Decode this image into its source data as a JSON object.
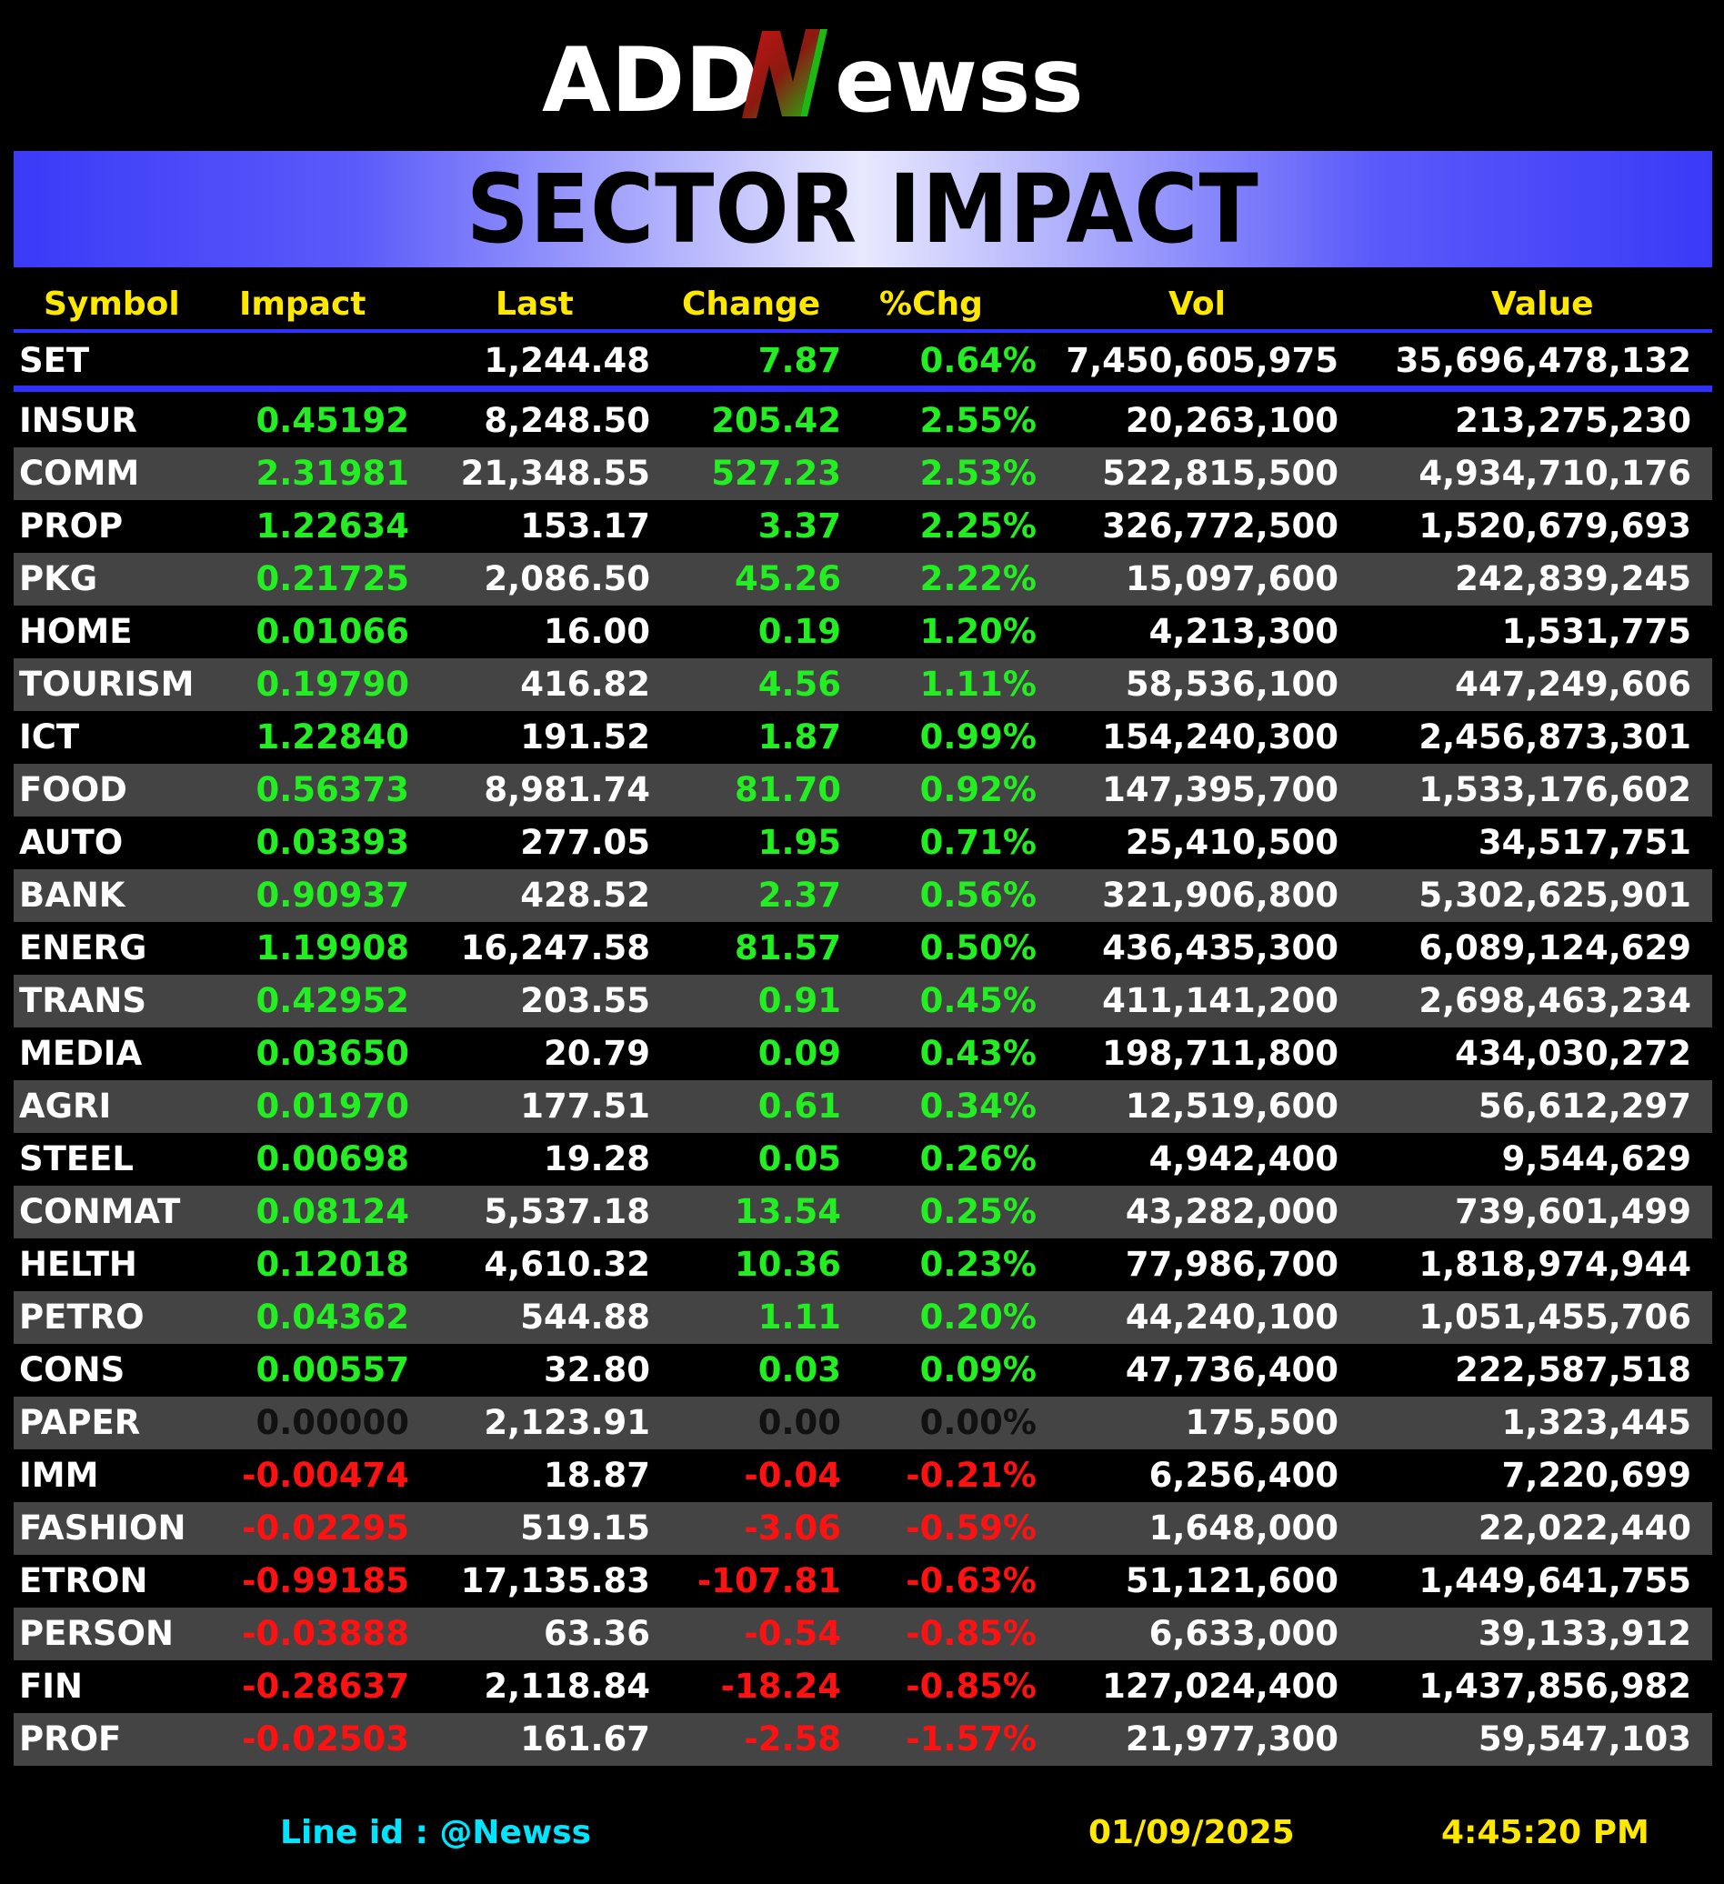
{
  "brand": {
    "name": "ADDNewss",
    "part1": "ADD",
    "accent": "N",
    "part2": "ewss",
    "accent_colors": [
      "#1db814",
      "#c81414"
    ]
  },
  "title": "SECTOR IMPACT",
  "headers": {
    "symbol": "Symbol",
    "impact": "Impact",
    "last": "Last",
    "change": "Change",
    "pct": "%Chg",
    "vol": "Vol",
    "value": "Value"
  },
  "index": {
    "symbol": "SET",
    "impact": "",
    "last": "1,244.48",
    "change": "7.87",
    "pct": "0.64%",
    "vol": "7,450,605,975",
    "value": "35,696,478,132",
    "dir": "up"
  },
  "rows": [
    {
      "symbol": "INSUR",
      "impact": "0.45192",
      "last": "8,248.50",
      "change": "205.42",
      "pct": "2.55%",
      "vol": "20,263,100",
      "value": "213,275,230",
      "dir": "up"
    },
    {
      "symbol": "COMM",
      "impact": "2.31981",
      "last": "21,348.55",
      "change": "527.23",
      "pct": "2.53%",
      "vol": "522,815,500",
      "value": "4,934,710,176",
      "dir": "up"
    },
    {
      "symbol": "PROP",
      "impact": "1.22634",
      "last": "153.17",
      "change": "3.37",
      "pct": "2.25%",
      "vol": "326,772,500",
      "value": "1,520,679,693",
      "dir": "up"
    },
    {
      "symbol": "PKG",
      "impact": "0.21725",
      "last": "2,086.50",
      "change": "45.26",
      "pct": "2.22%",
      "vol": "15,097,600",
      "value": "242,839,245",
      "dir": "up"
    },
    {
      "symbol": "HOME",
      "impact": "0.01066",
      "last": "16.00",
      "change": "0.19",
      "pct": "1.20%",
      "vol": "4,213,300",
      "value": "1,531,775",
      "dir": "up"
    },
    {
      "symbol": "TOURISM",
      "impact": "0.19790",
      "last": "416.82",
      "change": "4.56",
      "pct": "1.11%",
      "vol": "58,536,100",
      "value": "447,249,606",
      "dir": "up"
    },
    {
      "symbol": "ICT",
      "impact": "1.22840",
      "last": "191.52",
      "change": "1.87",
      "pct": "0.99%",
      "vol": "154,240,300",
      "value": "2,456,873,301",
      "dir": "up"
    },
    {
      "symbol": "FOOD",
      "impact": "0.56373",
      "last": "8,981.74",
      "change": "81.70",
      "pct": "0.92%",
      "vol": "147,395,700",
      "value": "1,533,176,602",
      "dir": "up"
    },
    {
      "symbol": "AUTO",
      "impact": "0.03393",
      "last": "277.05",
      "change": "1.95",
      "pct": "0.71%",
      "vol": "25,410,500",
      "value": "34,517,751",
      "dir": "up"
    },
    {
      "symbol": "BANK",
      "impact": "0.90937",
      "last": "428.52",
      "change": "2.37",
      "pct": "0.56%",
      "vol": "321,906,800",
      "value": "5,302,625,901",
      "dir": "up"
    },
    {
      "symbol": "ENERG",
      "impact": "1.19908",
      "last": "16,247.58",
      "change": "81.57",
      "pct": "0.50%",
      "vol": "436,435,300",
      "value": "6,089,124,629",
      "dir": "up"
    },
    {
      "symbol": "TRANS",
      "impact": "0.42952",
      "last": "203.55",
      "change": "0.91",
      "pct": "0.45%",
      "vol": "411,141,200",
      "value": "2,698,463,234",
      "dir": "up"
    },
    {
      "symbol": "MEDIA",
      "impact": "0.03650",
      "last": "20.79",
      "change": "0.09",
      "pct": "0.43%",
      "vol": "198,711,800",
      "value": "434,030,272",
      "dir": "up"
    },
    {
      "symbol": "AGRI",
      "impact": "0.01970",
      "last": "177.51",
      "change": "0.61",
      "pct": "0.34%",
      "vol": "12,519,600",
      "value": "56,612,297",
      "dir": "up"
    },
    {
      "symbol": "STEEL",
      "impact": "0.00698",
      "last": "19.28",
      "change": "0.05",
      "pct": "0.26%",
      "vol": "4,942,400",
      "value": "9,544,629",
      "dir": "up"
    },
    {
      "symbol": "CONMAT",
      "impact": "0.08124",
      "last": "5,537.18",
      "change": "13.54",
      "pct": "0.25%",
      "vol": "43,282,000",
      "value": "739,601,499",
      "dir": "up"
    },
    {
      "symbol": "HELTH",
      "impact": "0.12018",
      "last": "4,610.32",
      "change": "10.36",
      "pct": "0.23%",
      "vol": "77,986,700",
      "value": "1,818,974,944",
      "dir": "up"
    },
    {
      "symbol": "PETRO",
      "impact": "0.04362",
      "last": "544.88",
      "change": "1.11",
      "pct": "0.20%",
      "vol": "44,240,100",
      "value": "1,051,455,706",
      "dir": "up"
    },
    {
      "symbol": "CONS",
      "impact": "0.00557",
      "last": "32.80",
      "change": "0.03",
      "pct": "0.09%",
      "vol": "47,736,400",
      "value": "222,587,518",
      "dir": "up"
    },
    {
      "symbol": "PAPER",
      "impact": "0.00000",
      "last": "2,123.91",
      "change": "0.00",
      "pct": "0.00%",
      "vol": "175,500",
      "value": "1,323,445",
      "dir": "flat"
    },
    {
      "symbol": "IMM",
      "impact": "-0.00474",
      "last": "18.87",
      "change": "-0.04",
      "pct": "-0.21%",
      "vol": "6,256,400",
      "value": "7,220,699",
      "dir": "down"
    },
    {
      "symbol": "FASHION",
      "impact": "-0.02295",
      "last": "519.15",
      "change": "-3.06",
      "pct": "-0.59%",
      "vol": "1,648,000",
      "value": "22,022,440",
      "dir": "down"
    },
    {
      "symbol": "ETRON",
      "impact": "-0.99185",
      "last": "17,135.83",
      "change": "-107.81",
      "pct": "-0.63%",
      "vol": "51,121,600",
      "value": "1,449,641,755",
      "dir": "down"
    },
    {
      "symbol": "PERSON",
      "impact": "-0.03888",
      "last": "63.36",
      "change": "-0.54",
      "pct": "-0.85%",
      "vol": "6,633,000",
      "value": "39,133,912",
      "dir": "down"
    },
    {
      "symbol": "FIN",
      "impact": "-0.28637",
      "last": "2,118.84",
      "change": "-18.24",
      "pct": "-0.85%",
      "vol": "127,024,400",
      "value": "1,437,856,982",
      "dir": "down"
    },
    {
      "symbol": "PROF",
      "impact": "-0.02503",
      "last": "161.67",
      "change": "-2.58",
      "pct": "-1.57%",
      "vol": "21,977,300",
      "value": "59,547,103",
      "dir": "down"
    }
  ],
  "footer": {
    "line_id": "Line id  : @Newss",
    "date": "01/09/2025",
    "time": "4:45:20 PM"
  },
  "colors": {
    "up": "#22ee22",
    "down": "#ff1111",
    "flat": "#111111",
    "header": "#ffe800",
    "divider": "#3030ff",
    "banner": "#3a3af8"
  }
}
